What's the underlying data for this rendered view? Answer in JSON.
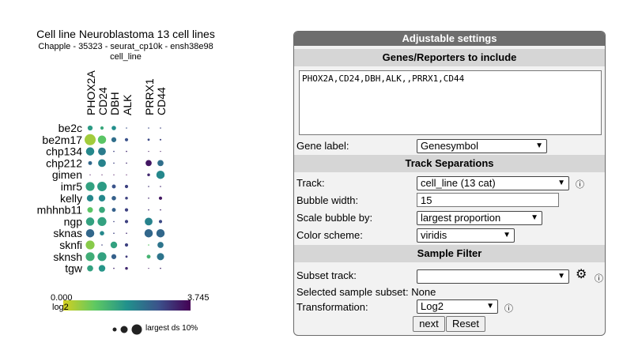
{
  "plot": {
    "title": "Cell line Neuroblastoma 13 cell lines",
    "subtitle": "Chapple - 35323 - seurat_cp10k - ensh38e98",
    "track_name": "cell_line",
    "legend_min": "0.000",
    "legend_max": "3.745",
    "legend_label": "log2",
    "size_legend_label": "largest ds 10%"
  },
  "chart_data": {
    "type": "dot-plot",
    "genes": [
      "PHOX2A",
      "CD24",
      "DBH",
      "ALK",
      "",
      "PRRX1",
      "CD44"
    ],
    "cell_lines": [
      "be2c",
      "be2m17",
      "chp134",
      "chp212",
      "gimen",
      "imr5",
      "kelly",
      "mhhnb11",
      "ngp",
      "sknas",
      "sknfi",
      "sknsh",
      "tgw"
    ],
    "color_range": [
      0,
      3.745
    ],
    "color_scale": "viridis",
    "size": [
      [
        0.45,
        0.3,
        0.4,
        0.1,
        0,
        0.1,
        0.05
      ],
      [
        1.0,
        0.75,
        0.45,
        0.3,
        0,
        0.2,
        0.15
      ],
      [
        0.75,
        0.7,
        0.1,
        0.05,
        0,
        0,
        0
      ],
      [
        0.35,
        0.7,
        0.1,
        0.05,
        0,
        0.55,
        0.55
      ],
      [
        0,
        0,
        0,
        0,
        0,
        0.25,
        0.75
      ],
      [
        0.8,
        0.85,
        0.35,
        0.3,
        0,
        0.1,
        0.1
      ],
      [
        0.6,
        0.6,
        0.4,
        0.25,
        0,
        0.05,
        0.3
      ],
      [
        0.5,
        0.55,
        0.35,
        0.3,
        0,
        0.05,
        0.05
      ],
      [
        0.75,
        0.8,
        0.1,
        0.3,
        0,
        0.7,
        0.3
      ],
      [
        0.75,
        0.4,
        0.1,
        0.05,
        0,
        0.75,
        0.75
      ],
      [
        0.8,
        0.1,
        0.6,
        0.3,
        0,
        0.05,
        0.55
      ],
      [
        0.8,
        0.8,
        0.45,
        0.2,
        0,
        0.35,
        0.65
      ],
      [
        0.55,
        0.6,
        0.1,
        0.25,
        0,
        0,
        0.05
      ]
    ],
    "value": [
      [
        1.7,
        1.5,
        1.9,
        2.8,
        0,
        2.9,
        3.0
      ],
      [
        0.4,
        1.0,
        2.4,
        2.8,
        0,
        2.9,
        3.0
      ],
      [
        2.0,
        2.2,
        3.0,
        3.3,
        0,
        3.5,
        3.5
      ],
      [
        2.5,
        2.1,
        3.0,
        3.3,
        0,
        3.5,
        2.4
      ],
      [
        3.7,
        3.7,
        3.7,
        3.7,
        0,
        3.3,
        2.0
      ],
      [
        1.6,
        1.7,
        2.8,
        3.0,
        0,
        3.2,
        3.3
      ],
      [
        2.0,
        2.0,
        2.6,
        3.0,
        0,
        3.3,
        3.5
      ],
      [
        1.0,
        1.5,
        2.6,
        3.0,
        0,
        3.2,
        3.3
      ],
      [
        1.6,
        1.6,
        3.0,
        3.0,
        0,
        2.1,
        2.9
      ],
      [
        2.5,
        2.0,
        3.0,
        3.3,
        0,
        2.5,
        2.5
      ],
      [
        0.6,
        3.0,
        1.6,
        3.0,
        0,
        1.0,
        2.3
      ],
      [
        1.4,
        1.6,
        2.6,
        3.1,
        0,
        1.3,
        2.3
      ],
      [
        1.6,
        1.8,
        3.3,
        3.3,
        0,
        3.5,
        3.3
      ]
    ]
  },
  "panel": {
    "header": "Adjustable settings",
    "genes_section": "Genes/Reporters to include",
    "genes_value": "PHOX2A,CD24,DBH,ALK,,PRRX1,CD44",
    "gene_label_label": "Gene label:",
    "gene_label_value": "Genesymbol",
    "track_section": "Track Separations",
    "track_label": "Track:",
    "track_value": "cell_line (13 cat)",
    "bubble_width_label": "Bubble width:",
    "bubble_width_value": "15",
    "scale_by_label": "Scale bubble by:",
    "scale_by_value": "largest proportion",
    "color_scheme_label": "Color scheme:",
    "color_scheme_value": "viridis",
    "filter_section": "Sample Filter",
    "subset_track_label": "Subset track:",
    "subset_track_value": "",
    "selected_subset_label": "Selected sample subset:",
    "selected_subset_value": "None",
    "transformation_label": "Transformation:",
    "transformation_value": "Log2",
    "next_label": "next",
    "reset_label": "Reset"
  }
}
